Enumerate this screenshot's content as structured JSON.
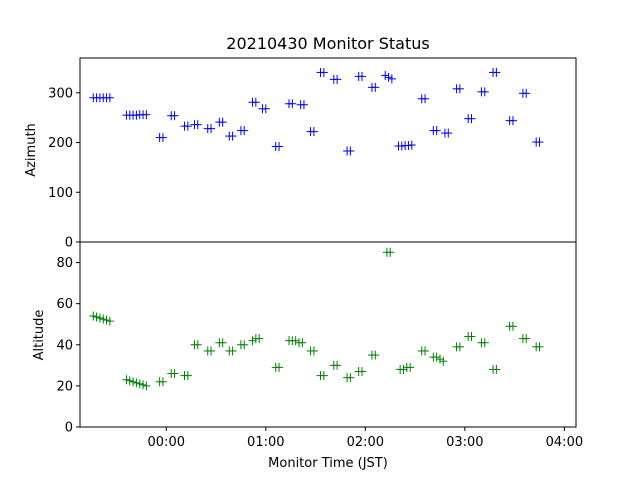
{
  "chart_data": [
    {
      "type": "scatter",
      "title": "20210430 Monitor Status",
      "xlabel": "",
      "ylabel": "Azimuth",
      "ylim": [
        0,
        370
      ],
      "yticks": [
        0,
        100,
        200,
        300
      ],
      "grid": false,
      "marker": "vertical-tick",
      "series": [
        {
          "color": "#0000ff",
          "points": [
            [
              "23:16",
              290
            ],
            [
              "23:18",
              290
            ],
            [
              "23:20",
              290
            ],
            [
              "23:22",
              290
            ],
            [
              "23:24",
              290
            ],
            [
              "23:26",
              290
            ],
            [
              "23:36",
              255
            ],
            [
              "23:38",
              255
            ],
            [
              "23:40",
              255
            ],
            [
              "23:42",
              255
            ],
            [
              "23:44",
              256
            ],
            [
              "23:46",
              256
            ],
            [
              "23:48",
              256
            ],
            [
              "23:56",
              210
            ],
            [
              "23:58",
              210
            ],
            [
              "00:03",
              254
            ],
            [
              "00:05",
              254
            ],
            [
              "00:11",
              233
            ],
            [
              "00:13",
              233
            ],
            [
              "00:17",
              236
            ],
            [
              "00:19",
              236
            ],
            [
              "00:25",
              228
            ],
            [
              "00:27",
              228
            ],
            [
              "00:32",
              241
            ],
            [
              "00:34",
              241
            ],
            [
              "00:38",
              213
            ],
            [
              "00:40",
              213
            ],
            [
              "00:45",
              224
            ],
            [
              "00:47",
              224
            ],
            [
              "00:52",
              281
            ],
            [
              "00:54",
              281
            ],
            [
              "00:58",
              268
            ],
            [
              "01:00",
              268
            ],
            [
              "01:06",
              192
            ],
            [
              "01:08",
              192
            ],
            [
              "01:14",
              278
            ],
            [
              "01:16",
              278
            ],
            [
              "01:21",
              276
            ],
            [
              "01:23",
              276
            ],
            [
              "01:27",
              222
            ],
            [
              "01:29",
              222
            ],
            [
              "01:33",
              341
            ],
            [
              "01:35",
              341
            ],
            [
              "01:41",
              327
            ],
            [
              "01:43",
              327
            ],
            [
              "01:49",
              183
            ],
            [
              "01:51",
              183
            ],
            [
              "01:56",
              333
            ],
            [
              "01:58",
              333
            ],
            [
              "02:04",
              311
            ],
            [
              "02:06",
              311
            ],
            [
              "02:12",
              335
            ],
            [
              "02:14",
              331
            ],
            [
              "02:16",
              328
            ],
            [
              "02:20",
              193
            ],
            [
              "02:22",
              193
            ],
            [
              "02:24",
              194
            ],
            [
              "02:26",
              194
            ],
            [
              "02:28",
              195
            ],
            [
              "02:34",
              288
            ],
            [
              "02:36",
              288
            ],
            [
              "02:41",
              224
            ],
            [
              "02:43",
              224
            ],
            [
              "02:48",
              219
            ],
            [
              "02:50",
              219
            ],
            [
              "02:55",
              308
            ],
            [
              "02:57",
              308
            ],
            [
              "03:02",
              248
            ],
            [
              "03:04",
              248
            ],
            [
              "03:10",
              302
            ],
            [
              "03:12",
              302
            ],
            [
              "03:17",
              341
            ],
            [
              "03:19",
              341
            ],
            [
              "03:27",
              244
            ],
            [
              "03:29",
              244
            ],
            [
              "03:35",
              299
            ],
            [
              "03:37",
              299
            ],
            [
              "03:43",
              201
            ],
            [
              "03:45",
              201
            ]
          ]
        }
      ]
    },
    {
      "type": "scatter",
      "title": "",
      "xlabel": "Monitor Time (JST)",
      "ylabel": "Altitude",
      "ylim": [
        0,
        90
      ],
      "yticks": [
        0,
        20,
        40,
        60,
        80
      ],
      "xlim": [
        "23:08",
        "04:07"
      ],
      "xticks": [
        "00:00",
        "01:00",
        "02:00",
        "03:00",
        "04:00"
      ],
      "grid": false,
      "marker": "vertical-tick",
      "series": [
        {
          "color": "#008000",
          "points": [
            [
              "23:16",
              54
            ],
            [
              "23:18",
              53.5
            ],
            [
              "23:20",
              53
            ],
            [
              "23:22",
              52.5
            ],
            [
              "23:24",
              52
            ],
            [
              "23:26",
              51.5
            ],
            [
              "23:36",
              23
            ],
            [
              "23:38",
              22.5
            ],
            [
              "23:40",
              22
            ],
            [
              "23:42",
              21.5
            ],
            [
              "23:44",
              21
            ],
            [
              "23:46",
              20.5
            ],
            [
              "23:48",
              20
            ],
            [
              "23:56",
              22
            ],
            [
              "23:58",
              22
            ],
            [
              "00:03",
              26
            ],
            [
              "00:05",
              26
            ],
            [
              "00:11",
              25
            ],
            [
              "00:13",
              25
            ],
            [
              "00:17",
              40
            ],
            [
              "00:19",
              40
            ],
            [
              "00:25",
              37
            ],
            [
              "00:27",
              37
            ],
            [
              "00:32",
              41
            ],
            [
              "00:34",
              41
            ],
            [
              "00:38",
              37
            ],
            [
              "00:40",
              37
            ],
            [
              "00:45",
              40
            ],
            [
              "00:47",
              40
            ],
            [
              "00:52",
              42
            ],
            [
              "00:54",
              43
            ],
            [
              "00:56",
              43
            ],
            [
              "01:06",
              29
            ],
            [
              "01:08",
              29
            ],
            [
              "01:14",
              42
            ],
            [
              "01:16",
              42
            ],
            [
              "01:18",
              42
            ],
            [
              "01:20",
              41
            ],
            [
              "01:22",
              41
            ],
            [
              "01:27",
              37
            ],
            [
              "01:29",
              37
            ],
            [
              "01:33",
              25
            ],
            [
              "01:35",
              25
            ],
            [
              "01:41",
              30
            ],
            [
              "01:43",
              30
            ],
            [
              "01:49",
              24
            ],
            [
              "01:51",
              24
            ],
            [
              "01:56",
              27
            ],
            [
              "01:58",
              27
            ],
            [
              "02:04",
              35
            ],
            [
              "02:06",
              35
            ],
            [
              "02:13",
              85
            ],
            [
              "02:15",
              85
            ],
            [
              "02:21",
              28
            ],
            [
              "02:23",
              28
            ],
            [
              "02:25",
              29
            ],
            [
              "02:27",
              29
            ],
            [
              "02:34",
              37
            ],
            [
              "02:36",
              37
            ],
            [
              "02:41",
              34
            ],
            [
              "02:43",
              34
            ],
            [
              "02:45",
              33
            ],
            [
              "02:47",
              32
            ],
            [
              "02:55",
              39
            ],
            [
              "02:57",
              39
            ],
            [
              "03:02",
              44
            ],
            [
              "03:04",
              44
            ],
            [
              "03:10",
              41
            ],
            [
              "03:12",
              41
            ],
            [
              "03:17",
              28
            ],
            [
              "03:19",
              28
            ],
            [
              "03:27",
              49
            ],
            [
              "03:29",
              49
            ],
            [
              "03:35",
              43
            ],
            [
              "03:37",
              43
            ],
            [
              "03:43",
              39
            ],
            [
              "03:45",
              39
            ]
          ]
        }
      ]
    }
  ]
}
